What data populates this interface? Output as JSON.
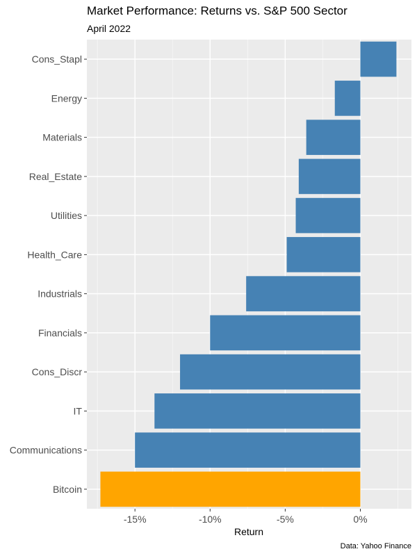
{
  "chart_data": {
    "type": "bar",
    "orientation": "horizontal",
    "title": "Market Performance: Returns vs. S&P 500 Sector",
    "subtitle": "April 2022",
    "xlabel": "Return",
    "ylabel": "",
    "caption": "Data: Yahoo Finance",
    "categories": [
      "Cons_Stapl",
      "Energy",
      "Materials",
      "Real_Estate",
      "Utilities",
      "Health_Care",
      "Industrials",
      "Financials",
      "Cons_Discr",
      "IT",
      "Communications",
      "Bitcoin"
    ],
    "values": [
      2.4,
      -1.7,
      -3.6,
      -4.1,
      -4.3,
      -4.9,
      -7.6,
      -10.0,
      -12.0,
      -13.7,
      -15.0,
      -17.3
    ],
    "colors": [
      "#4682B4",
      "#4682B4",
      "#4682B4",
      "#4682B4",
      "#4682B4",
      "#4682B4",
      "#4682B4",
      "#4682B4",
      "#4682B4",
      "#4682B4",
      "#4682B4",
      "#FFA500"
    ],
    "x_ticks": [
      -15,
      -10,
      -5,
      0
    ],
    "x_tick_labels": [
      "-15%",
      "-10%",
      "-5%",
      "0%"
    ],
    "xlim": [
      -18.2,
      3.4
    ],
    "grid": true,
    "legend": "none",
    "panel_background": "#EBEBEB"
  }
}
